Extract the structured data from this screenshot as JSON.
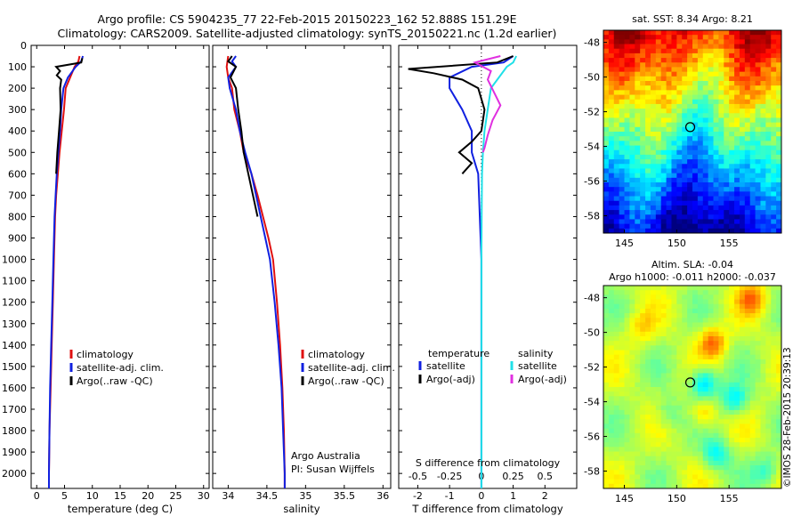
{
  "header": {
    "line1": "Argo profile: CS 5904235_77 22-Feb-2015 20150223_162 52.888S 151.29E",
    "line2": "Climatology: CARS2009. Satellite-adjusted climatology: synTS_20150221.nc (1.2d earlier)"
  },
  "depth_ticks": [
    0,
    100,
    200,
    300,
    400,
    500,
    600,
    700,
    800,
    900,
    1000,
    1100,
    1200,
    1300,
    1400,
    1500,
    1600,
    1700,
    1800,
    1900,
    2000
  ],
  "colors": {
    "climatology": "#e01010",
    "satellite": "#1020e0",
    "argo": "#000000",
    "sat_salinity": "#20e0e8",
    "argo_salinity": "#e030e0",
    "marker": "#000000"
  },
  "chart_data": [
    {
      "type": "line",
      "id": "temperature",
      "xlabel": "temperature (deg C)",
      "xlim": [
        -1,
        31
      ],
      "ylim": [
        2070,
        0
      ],
      "xticks": [
        0,
        5,
        10,
        15,
        20,
        25,
        30
      ],
      "legend": [
        "climatology",
        "satellite-adj. clim.",
        "Argo(..raw -QC)"
      ],
      "series": [
        {
          "name": "climatology",
          "color": "#e01010",
          "points": [
            [
              7.7,
              50
            ],
            [
              7.5,
              75
            ],
            [
              6.8,
              100
            ],
            [
              6.0,
              150
            ],
            [
              5.2,
              200
            ],
            [
              4.9,
              300
            ],
            [
              4.5,
              400
            ],
            [
              4.1,
              500
            ],
            [
              3.8,
              600
            ],
            [
              3.5,
              700
            ],
            [
              3.3,
              800
            ],
            [
              3.1,
              1000
            ],
            [
              2.9,
              1200
            ],
            [
              2.7,
              1400
            ],
            [
              2.5,
              1600
            ],
            [
              2.3,
              1800
            ],
            [
              2.2,
              2000
            ],
            [
              2.2,
              2070
            ]
          ]
        },
        {
          "name": "satellite-adj. clim.",
          "color": "#1020e0",
          "points": [
            [
              8.3,
              50
            ],
            [
              8.0,
              75
            ],
            [
              7.0,
              100
            ],
            [
              5.6,
              150
            ],
            [
              4.8,
              200
            ],
            [
              4.4,
              300
            ],
            [
              4.2,
              400
            ],
            [
              3.9,
              500
            ],
            [
              3.6,
              600
            ],
            [
              3.4,
              700
            ],
            [
              3.2,
              800
            ],
            [
              3.0,
              1000
            ],
            [
              2.8,
              1200
            ],
            [
              2.6,
              1400
            ],
            [
              2.4,
              1600
            ],
            [
              2.3,
              1800
            ],
            [
              2.2,
              2000
            ],
            [
              2.2,
              2070
            ]
          ]
        },
        {
          "name": "Argo(..raw -QC)",
          "color": "#000000",
          "points": [
            [
              8.2,
              60
            ],
            [
              8.0,
              80
            ],
            [
              3.5,
              100
            ],
            [
              4.2,
              120
            ],
            [
              3.6,
              140
            ],
            [
              4.4,
              160
            ],
            [
              4.2,
              200
            ],
            [
              4.3,
              300
            ],
            [
              4.0,
              400
            ],
            [
              3.7,
              500
            ],
            [
              3.5,
              600
            ]
          ]
        }
      ]
    },
    {
      "type": "line",
      "id": "salinity",
      "xlabel": "salinity",
      "xlim": [
        33.8,
        36.1
      ],
      "ylim": [
        2070,
        0
      ],
      "xticks": [
        34,
        34.5,
        35,
        35.5,
        36
      ],
      "xticklabels": [
        "34",
        "34.5",
        "35",
        "35.5",
        "36"
      ],
      "legend": [
        "climatology",
        "satellite-adj. clim.",
        "Argo(..raw -QC)"
      ],
      "annotations": [
        "Argo Australia",
        "PI: Susan Wijffels"
      ],
      "series": [
        {
          "name": "climatology",
          "color": "#e01010",
          "points": [
            [
              34.0,
              50
            ],
            [
              33.98,
              100
            ],
            [
              34.0,
              150
            ],
            [
              34.05,
              200
            ],
            [
              34.08,
              300
            ],
            [
              34.15,
              400
            ],
            [
              34.2,
              500
            ],
            [
              34.3,
              600
            ],
            [
              34.38,
              700
            ],
            [
              34.45,
              800
            ],
            [
              34.52,
              900
            ],
            [
              34.58,
              1000
            ],
            [
              34.63,
              1200
            ],
            [
              34.67,
              1400
            ],
            [
              34.7,
              1600
            ],
            [
              34.72,
              1800
            ],
            [
              34.73,
              2000
            ],
            [
              34.73,
              2070
            ]
          ]
        },
        {
          "name": "satellite-adj. clim.",
          "color": "#1020e0",
          "points": [
            [
              34.1,
              50
            ],
            [
              34.05,
              75
            ],
            [
              34.1,
              100
            ],
            [
              34.0,
              150
            ],
            [
              34.02,
              200
            ],
            [
              34.1,
              300
            ],
            [
              34.15,
              400
            ],
            [
              34.22,
              500
            ],
            [
              34.3,
              600
            ],
            [
              34.36,
              700
            ],
            [
              34.42,
              800
            ],
            [
              34.48,
              900
            ],
            [
              34.54,
              1000
            ],
            [
              34.6,
              1200
            ],
            [
              34.65,
              1400
            ],
            [
              34.69,
              1600
            ],
            [
              34.71,
              1800
            ],
            [
              34.73,
              2000
            ],
            [
              34.73,
              2070
            ]
          ]
        },
        {
          "name": "Argo(..raw -QC)",
          "color": "#000000",
          "points": [
            [
              34.05,
              50
            ],
            [
              34.0,
              75
            ],
            [
              34.1,
              100
            ],
            [
              34.03,
              150
            ],
            [
              34.1,
              200
            ],
            [
              34.13,
              300
            ],
            [
              34.17,
              400
            ],
            [
              34.2,
              500
            ],
            [
              34.26,
              600
            ],
            [
              34.32,
              700
            ],
            [
              34.38,
              800
            ]
          ]
        }
      ]
    },
    {
      "type": "line",
      "id": "difference",
      "xlabel": "T difference from climatology",
      "xlabel2": "S difference from climatology",
      "xlim": [
        -2.6,
        3.0
      ],
      "ylim": [
        2070,
        0
      ],
      "xticks": [
        -2,
        -1,
        0,
        1,
        2
      ],
      "xticks2": [
        -0.5,
        -0.25,
        0,
        0.25,
        0.5
      ],
      "xticks2_labels": [
        "-0.5",
        "-0.25",
        "0",
        "0.25",
        "0.5"
      ],
      "legend_temperature": {
        "title": "temperature",
        "entries": [
          "satellite",
          "Argo(-adj)"
        ]
      },
      "legend_salinity": {
        "title": "salinity",
        "entries": [
          "satellite",
          "Argo(-adj)"
        ]
      },
      "series": [
        {
          "name": "temperature satellite",
          "color": "#1020e0",
          "points": [
            [
              1.0,
              50
            ],
            [
              0.7,
              80
            ],
            [
              -0.3,
              100
            ],
            [
              -1.0,
              150
            ],
            [
              -1.0,
              200
            ],
            [
              -0.6,
              300
            ],
            [
              -0.3,
              400
            ],
            [
              -0.3,
              500
            ],
            [
              -0.1,
              600
            ],
            [
              -0.05,
              800
            ],
            [
              0,
              1000
            ],
            [
              0,
              2070
            ]
          ]
        },
        {
          "name": "temperature Argo(-adj)",
          "color": "#000000",
          "points": [
            [
              1.0,
              50
            ],
            [
              0.5,
              80
            ],
            [
              -2.3,
              110
            ],
            [
              -1.5,
              130
            ],
            [
              -0.6,
              160
            ],
            [
              -0.1,
              200
            ],
            [
              0.1,
              300
            ],
            [
              0,
              400
            ],
            [
              -0.3,
              450
            ],
            [
              -0.7,
              500
            ],
            [
              -0.3,
              550
            ],
            [
              -0.6,
              600
            ]
          ]
        },
        {
          "name": "salinity satellite",
          "color": "#20e0e8",
          "points": [
            [
              1.1,
              50
            ],
            [
              1.0,
              80
            ],
            [
              0.8,
              100
            ],
            [
              0.3,
              200
            ],
            [
              0.2,
              300
            ],
            [
              0.1,
              400
            ],
            [
              0.05,
              500
            ],
            [
              0.02,
              600
            ],
            [
              0.01,
              800
            ],
            [
              0,
              1000
            ],
            [
              0,
              2070
            ]
          ]
        },
        {
          "name": "salinity Argo(-adj)",
          "color": "#e030e0",
          "points": [
            [
              0.6,
              50
            ],
            [
              -0.2,
              80
            ],
            [
              0.3,
              120
            ],
            [
              0.2,
              160
            ],
            [
              0.6,
              280
            ],
            [
              0.35,
              350
            ],
            [
              0.2,
              420
            ],
            [
              0.1,
              480
            ],
            [
              0.05,
              500
            ]
          ]
        }
      ]
    },
    {
      "type": "heatmap",
      "id": "sst_map",
      "title": "sat. SST: 8.34  Argo: 8.21",
      "xticks": [
        145,
        150,
        155
      ],
      "yticks": [
        -48,
        -50,
        -52,
        -54,
        -56,
        -58
      ],
      "xlim": [
        143,
        160
      ],
      "ylim": [
        -59,
        -47.3
      ],
      "marker": [
        151.29,
        -52.888
      ]
    },
    {
      "type": "heatmap",
      "id": "sla_map",
      "title": "Altim. SLA: -0.04",
      "subtitle": "Argo h1000: -0.011 h2000: -0.037",
      "xticks": [
        145,
        150,
        155
      ],
      "yticks": [
        -48,
        -50,
        -52,
        -54,
        -56,
        -58
      ],
      "xlim": [
        143,
        160
      ],
      "ylim": [
        -59,
        -47.3
      ],
      "marker": [
        151.29,
        -52.888
      ]
    }
  ],
  "footer": {
    "credit": "©IMOS 28-Feb-2015 20:39:13"
  }
}
